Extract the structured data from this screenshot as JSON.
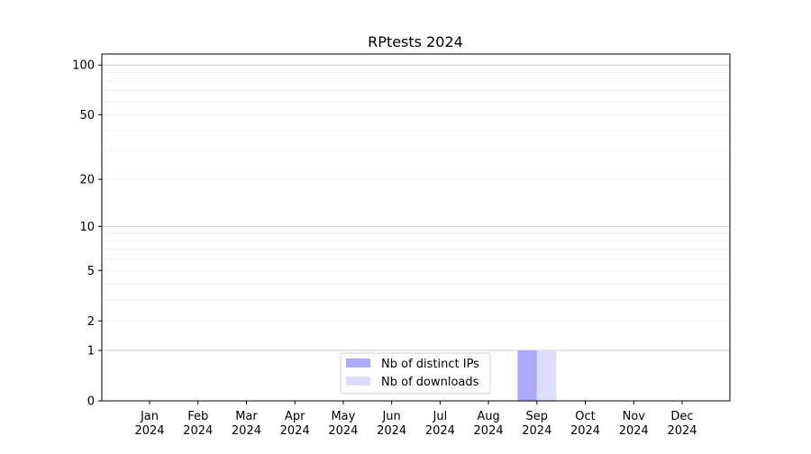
{
  "chart_data": {
    "type": "bar",
    "title": "RPtests 2024",
    "xlabel": "",
    "ylabel": "",
    "y_scale": "log(1+y)",
    "ylim": [
      0,
      116
    ],
    "grid": "horizontal, major and minor",
    "legend_position": "lower-center",
    "categories": [
      "Jan\n2024",
      "Feb\n2024",
      "Mar\n2024",
      "Apr\n2024",
      "May\n2024",
      "Jun\n2024",
      "Jul\n2024",
      "Aug\n2024",
      "Sep\n2024",
      "Oct\n2024",
      "Nov\n2024",
      "Dec\n2024"
    ],
    "y_ticks": [
      0,
      1,
      2,
      5,
      10,
      20,
      50,
      100
    ],
    "series": [
      {
        "name": "Nb of distinct IPs",
        "color": "#aaaaff",
        "values": [
          0,
          0,
          0,
          0,
          0,
          0,
          0,
          0,
          1,
          0,
          0,
          0
        ]
      },
      {
        "name": "Nb of downloads",
        "color": "#ddddff",
        "values": [
          0,
          0,
          0,
          0,
          0,
          0,
          0,
          0,
          1,
          0,
          0,
          0
        ]
      }
    ]
  }
}
